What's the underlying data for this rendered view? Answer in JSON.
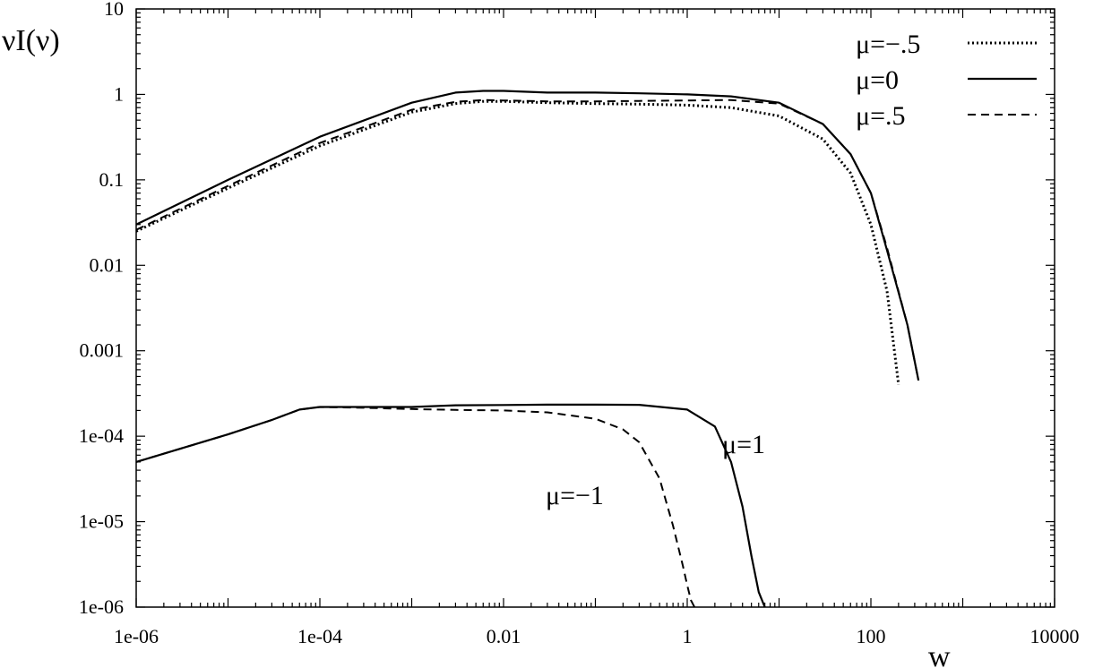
{
  "chart_data": {
    "type": "line",
    "xlabel": "w",
    "ylabel": "νI(ν)",
    "xscale": "log",
    "yscale": "log",
    "xlim": [
      1e-06,
      10000
    ],
    "ylim": [
      1e-06,
      10
    ],
    "grid": false,
    "legend_position": "top-right",
    "x_ticks": [
      {
        "value": 1e-06,
        "label": "1e-06"
      },
      {
        "value": 0.0001,
        "label": "1e-04"
      },
      {
        "value": 0.01,
        "label": "0.01"
      },
      {
        "value": 1,
        "label": "1"
      },
      {
        "value": 100,
        "label": "100"
      },
      {
        "value": 10000,
        "label": "10000"
      }
    ],
    "y_ticks": [
      {
        "value": 1e-06,
        "label": "1e-06"
      },
      {
        "value": 1e-05,
        "label": "1e-05"
      },
      {
        "value": 0.0001,
        "label": "1e-04"
      },
      {
        "value": 0.001,
        "label": "0.001"
      },
      {
        "value": 0.01,
        "label": "0.01"
      },
      {
        "value": 0.1,
        "label": "0.1"
      },
      {
        "value": 1,
        "label": "1"
      },
      {
        "value": 10,
        "label": "10"
      }
    ],
    "series": [
      {
        "name": "μ=−.5",
        "dash": "dotted",
        "x": [
          1e-06,
          1e-05,
          0.0001,
          0.001,
          0.003,
          0.006,
          0.01,
          0.03,
          0.1,
          0.3,
          1,
          3,
          10,
          30,
          60,
          100,
          150,
          200
        ],
        "y": [
          0.025,
          0.08,
          0.25,
          0.62,
          0.78,
          0.83,
          0.83,
          0.8,
          0.78,
          0.77,
          0.75,
          0.7,
          0.56,
          0.3,
          0.12,
          0.03,
          0.005,
          0.0004
        ]
      },
      {
        "name": "μ=0",
        "dash": "solid",
        "x": [
          1e-06,
          1e-05,
          0.0001,
          0.001,
          0.003,
          0.006,
          0.01,
          0.03,
          0.1,
          0.3,
          1,
          3,
          10,
          30,
          60,
          100,
          150,
          250,
          330
        ],
        "y": [
          0.03,
          0.1,
          0.32,
          0.8,
          1.05,
          1.1,
          1.1,
          1.05,
          1.05,
          1.03,
          1.0,
          0.95,
          0.8,
          0.45,
          0.2,
          0.07,
          0.015,
          0.002,
          0.00045
        ]
      },
      {
        "name": "μ=.5",
        "dash": "dashed",
        "x": [
          1e-06,
          1e-05,
          0.0001,
          0.001,
          0.003,
          0.006,
          0.01,
          0.03,
          0.1,
          0.3,
          1,
          3,
          10,
          30,
          60,
          100,
          150,
          250,
          330
        ],
        "y": [
          0.026,
          0.085,
          0.27,
          0.66,
          0.82,
          0.86,
          0.85,
          0.83,
          0.83,
          0.84,
          0.85,
          0.86,
          0.78,
          0.45,
          0.2,
          0.07,
          0.016,
          0.002,
          0.00045
        ]
      },
      {
        "label": "μ=1",
        "dash": "solid",
        "x": [
          1e-06,
          1e-05,
          3e-05,
          6e-05,
          0.0001,
          0.0003,
          0.001,
          0.003,
          0.01,
          0.03,
          0.1,
          0.3,
          1,
          2,
          3,
          4,
          5,
          6,
          7
        ],
        "y": [
          5e-05,
          0.000105,
          0.000155,
          0.000205,
          0.00022,
          0.00022,
          0.00022,
          0.00023,
          0.000232,
          0.000234,
          0.000234,
          0.000233,
          0.000205,
          0.00013,
          5e-05,
          1.5e-05,
          4e-06,
          1.5e-06,
          1e-06
        ]
      },
      {
        "label": "μ=−1",
        "dash": "dashed",
        "x": [
          1e-06,
          1e-05,
          3e-05,
          6e-05,
          0.0001,
          0.0003,
          0.001,
          0.003,
          0.01,
          0.03,
          0.1,
          0.2,
          0.3,
          0.5,
          0.7,
          0.9,
          1.0,
          1.1,
          1.2
        ],
        "y": [
          5e-05,
          0.000105,
          0.000155,
          0.000205,
          0.00022,
          0.000215,
          0.000208,
          0.000203,
          0.0002,
          0.00019,
          0.00016,
          0.00012,
          8.5e-05,
          3.2e-05,
          9e-06,
          3e-06,
          1.8e-06,
          1.2e-06,
          1e-06
        ]
      }
    ]
  }
}
